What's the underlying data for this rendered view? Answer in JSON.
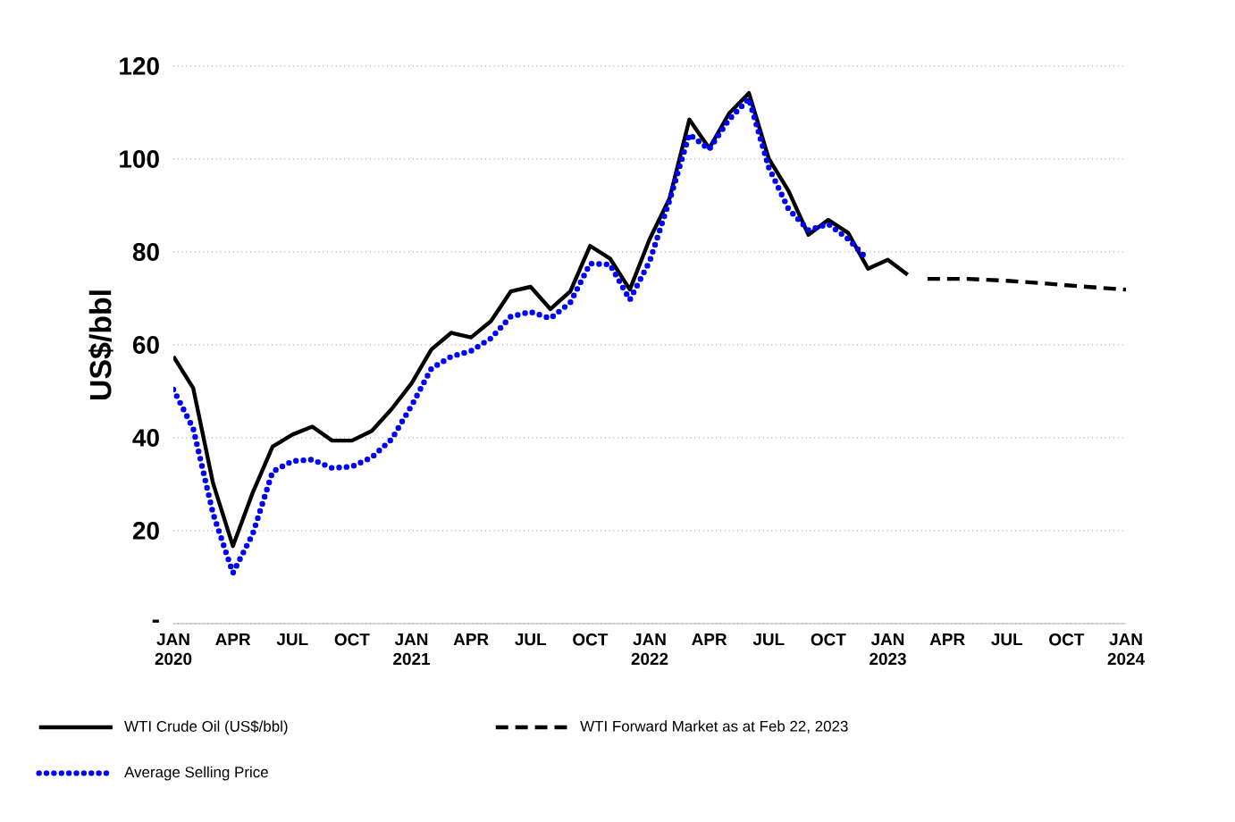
{
  "chart_data": {
    "type": "line",
    "ylabel": "US$/bbl",
    "xlim": [
      "2020-01",
      "2024-01"
    ],
    "xticks": [
      {
        "value": "2020-01",
        "label": "JAN 2020"
      },
      {
        "value": "2020-04",
        "label": "APR"
      },
      {
        "value": "2020-07",
        "label": "JUL"
      },
      {
        "value": "2020-10",
        "label": "OCT"
      },
      {
        "value": "2021-01",
        "label": "JAN 2021"
      },
      {
        "value": "2021-04",
        "label": "APR"
      },
      {
        "value": "2021-07",
        "label": "JUL"
      },
      {
        "value": "2021-10",
        "label": "OCT"
      },
      {
        "value": "2022-01",
        "label": "JAN 2022"
      },
      {
        "value": "2022-04",
        "label": "APR"
      },
      {
        "value": "2022-07",
        "label": "JUL"
      },
      {
        "value": "2022-10",
        "label": "OCT"
      },
      {
        "value": "2023-01",
        "label": "JAN 2023"
      },
      {
        "value": "2023-04",
        "label": "APR"
      },
      {
        "value": "2023-07",
        "label": "JUL"
      },
      {
        "value": "2023-10",
        "label": "OCT"
      },
      {
        "value": "2024-01",
        "label": "JAN 2024"
      }
    ],
    "ylim": [
      0,
      120
    ],
    "yticks": [
      {
        "value": 0,
        "label": "-"
      },
      20,
      40,
      60,
      80,
      100,
      120
    ],
    "grid": "y",
    "legend": "bottom",
    "marker": "none",
    "series": [
      {
        "name": "WTI Crude Oil (US$/bbl)",
        "color": "#000000",
        "line_style": "solid",
        "x": [
          "2020-01",
          "2020-02",
          "2020-03",
          "2020-04",
          "2020-05",
          "2020-06",
          "2020-07",
          "2020-08",
          "2020-09",
          "2020-10",
          "2020-11",
          "2020-12",
          "2021-01",
          "2021-02",
          "2021-03",
          "2021-04",
          "2021-05",
          "2021-06",
          "2021-07",
          "2021-08",
          "2021-09",
          "2021-10",
          "2021-11",
          "2021-12",
          "2022-01",
          "2022-02",
          "2022-03",
          "2022-04",
          "2022-05",
          "2022-06",
          "2022-07",
          "2022-08",
          "2022-09",
          "2022-10",
          "2022-11",
          "2022-12",
          "2023-01",
          "2023-02"
        ],
        "values": [
          57.5,
          50.7,
          30.2,
          16.7,
          28.2,
          38.1,
          40.7,
          42.4,
          39.4,
          39.4,
          41.5,
          46.2,
          51.7,
          59.0,
          62.6,
          61.6,
          65.1,
          71.5,
          72.5,
          67.7,
          71.5,
          81.3,
          78.6,
          71.9,
          82.8,
          91.5,
          108.5,
          102.3,
          109.8,
          114.2,
          100.1,
          93.1,
          83.7,
          86.9,
          84.1,
          76.4,
          78.3,
          75.1
        ]
      },
      {
        "name": "WTI Forward Market as at Feb 22, 2023",
        "color": "#000000",
        "line_style": "dashed",
        "x": [
          "2023-03",
          "2023-05",
          "2023-07",
          "2023-09",
          "2023-11",
          "2024-01"
        ],
        "values": [
          74.2,
          74.2,
          73.8,
          73.2,
          72.5,
          71.9
        ]
      },
      {
        "name": "Average Selling Price",
        "color": "#0000ff",
        "line_style": "dotted",
        "x": [
          "2020-01",
          "2020-02",
          "2020-03",
          "2020-04",
          "2020-05",
          "2020-06",
          "2020-07",
          "2020-08",
          "2020-09",
          "2020-10",
          "2020-11",
          "2020-12",
          "2021-01",
          "2021-02",
          "2021-03",
          "2021-04",
          "2021-05",
          "2021-06",
          "2021-07",
          "2021-08",
          "2021-09",
          "2021-10",
          "2021-11",
          "2021-12",
          "2022-01",
          "2022-02",
          "2022-03",
          "2022-04",
          "2022-05",
          "2022-06",
          "2022-07",
          "2022-08",
          "2022-09",
          "2022-10",
          "2022-11",
          "2022-12"
        ],
        "values": [
          50.4,
          42.0,
          23.7,
          10.9,
          19.3,
          32.7,
          35.0,
          35.3,
          33.5,
          33.8,
          35.8,
          39.7,
          46.9,
          54.9,
          57.5,
          58.7,
          61.4,
          66.1,
          67.1,
          65.7,
          69.1,
          77.5,
          77.3,
          69.7,
          78.0,
          91.1,
          105.3,
          102.1,
          108.5,
          113.0,
          98.2,
          89.2,
          84.7,
          86.0,
          82.8,
          78.3
        ]
      }
    ]
  }
}
